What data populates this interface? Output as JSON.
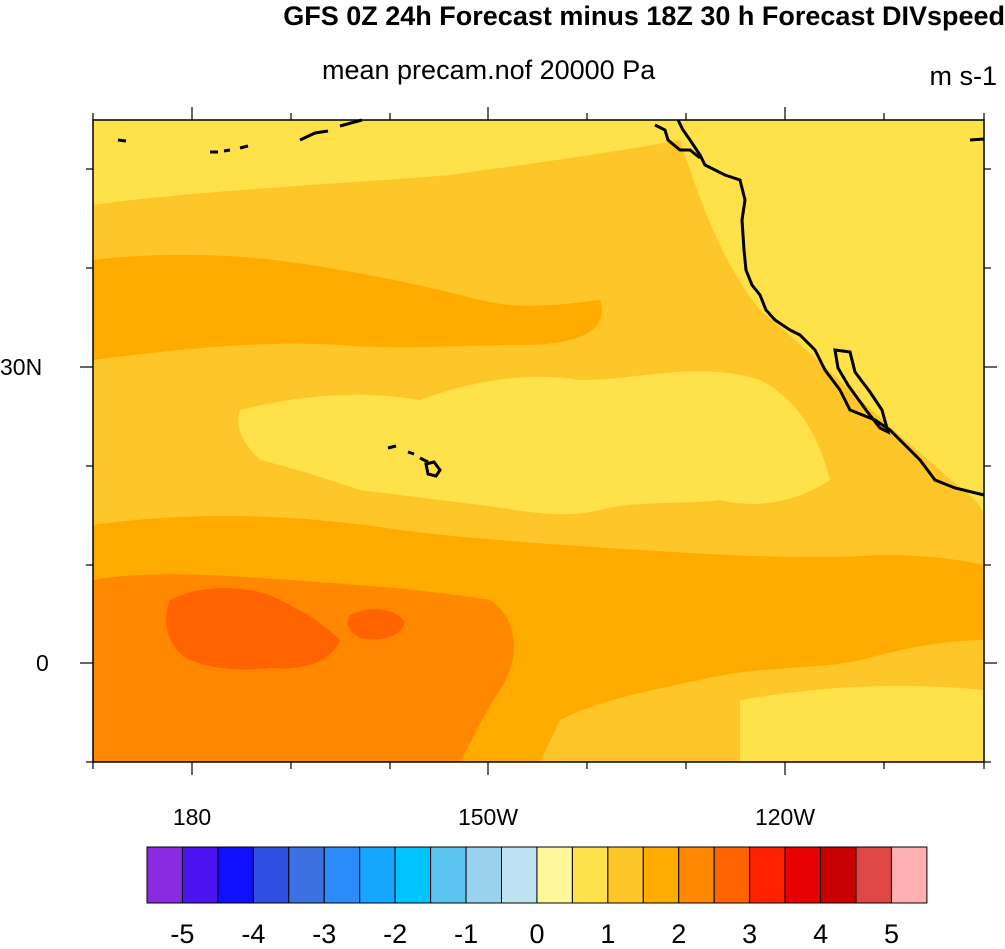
{
  "title": "GFS 0Z 24h Forecast minus 18Z 30 h Forecast DIVspeed",
  "subtitle": "mean precam.nof 20000 Pa",
  "units": "m s-1",
  "lat_labels": [
    "30N",
    "0"
  ],
  "lon_labels": [
    "180",
    "150W",
    "120W"
  ],
  "colorbar": {
    "colors": [
      "#8a2be2",
      "#4b14f0",
      "#1010ff",
      "#2f4fe0",
      "#3c6fe0",
      "#2b8cf7",
      "#17a6ff",
      "#00c4ff",
      "#5bc4f2",
      "#9ad1ec",
      "#bfe3f3",
      "#fff89a",
      "#ffe14a",
      "#ffc62a",
      "#ffab00",
      "#ff8800",
      "#ff6400",
      "#ff2200",
      "#e80000",
      "#c80000",
      "#df4646",
      "#ffb0b0"
    ],
    "labels": [
      "-5",
      "-4",
      "-3",
      "-2",
      "-1",
      "0",
      "1",
      "2",
      "3",
      "4",
      "5"
    ]
  },
  "map_colors": {
    "level_0_5": "#ffe14a",
    "level_1": "#ffc62a",
    "level_1_5": "#ffab00",
    "level_2": "#ff8800",
    "level_2_5": "#ff6400",
    "coast": "#000000"
  }
}
